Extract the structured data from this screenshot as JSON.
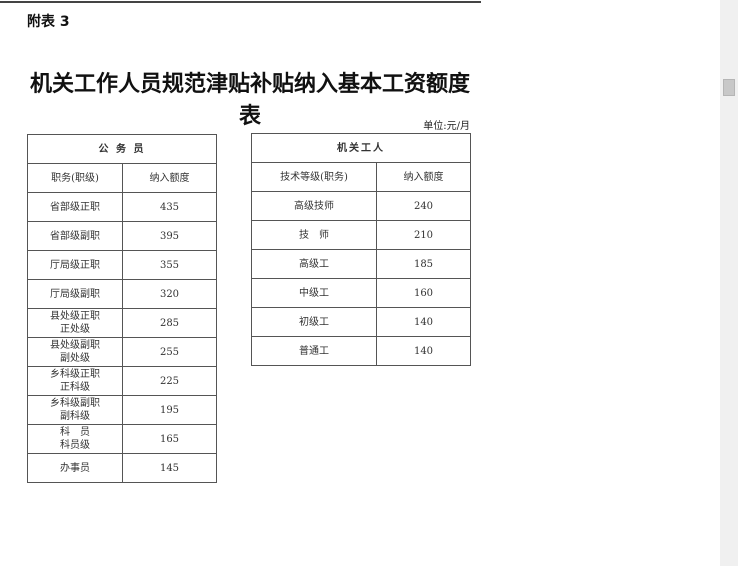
{
  "document": {
    "annex_label": "附表 3",
    "title": "机关工作人员规范津贴补贴纳入基本工资额度表",
    "unit": "单位:元/月"
  },
  "civil_servants": {
    "group_header": "公 务 员",
    "columns": [
      "职务(职级)",
      "纳入额度"
    ],
    "rows": [
      {
        "position": "省部级正职",
        "amount": "435"
      },
      {
        "position": "省部级副职",
        "amount": "395"
      },
      {
        "position": "厅局级正职",
        "amount": "355"
      },
      {
        "position": "厅局级副职",
        "amount": "320"
      },
      {
        "position": "县处级正职",
        "position2": "正处级",
        "amount": "285"
      },
      {
        "position": "县处级副职",
        "position2": "副处级",
        "amount": "255"
      },
      {
        "position": "乡科级正职",
        "position2": "正科级",
        "amount": "225"
      },
      {
        "position": "乡科级副职",
        "position2": "副科级",
        "amount": "195"
      },
      {
        "position": "科　员",
        "position2": "科员级",
        "amount": "165"
      },
      {
        "position": "办事员",
        "amount": "145"
      }
    ]
  },
  "workers": {
    "group_header": "机关工人",
    "columns": [
      "技术等级(职务)",
      "纳入额度"
    ],
    "rows": [
      {
        "grade": "高级技师",
        "amount": "240"
      },
      {
        "grade": "技　师",
        "amount": "210"
      },
      {
        "grade": "高级工",
        "amount": "185"
      },
      {
        "grade": "中级工",
        "amount": "160"
      },
      {
        "grade": "初级工",
        "amount": "140"
      },
      {
        "grade": "普通工",
        "amount": "140"
      }
    ]
  }
}
